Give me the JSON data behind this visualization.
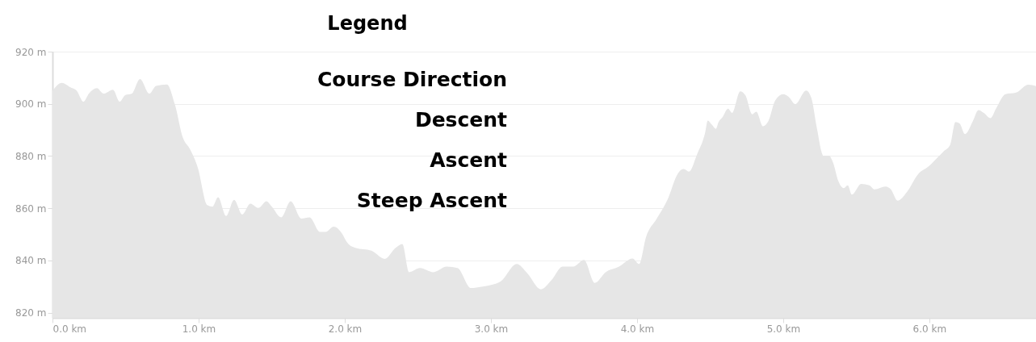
{
  "chart_data": {
    "type": "area",
    "annotations": [
      "Legend",
      "Course Direction",
      "Descent",
      "Ascent",
      "Steep Ascent"
    ],
    "x": [
      0,
      0.064,
      0.12,
      0.166,
      0.212,
      0.249,
      0.304,
      0.35,
      0.414,
      0.46,
      0.497,
      0.543,
      0.599,
      0.663,
      0.709,
      0.783,
      0.838,
      0.893,
      0.939,
      0.994,
      1.059,
      1.095,
      1.133,
      1.188,
      1.243,
      1.298,
      1.354,
      1.409,
      1.464,
      1.501,
      1.565,
      1.63,
      1.703,
      1.759,
      1.832,
      1.869,
      1.924,
      1.98,
      2.017,
      2.072,
      2.182,
      2.274,
      2.348,
      2.394,
      2.44,
      2.514,
      2.606,
      2.698,
      2.771,
      2.864,
      2.937,
      3.066,
      3.177,
      3.25,
      3.342,
      3.416,
      3.49,
      3.563,
      3.637,
      3.711,
      3.785,
      3.877,
      3.969,
      4.015,
      4.061,
      4.135,
      4.208,
      4.282,
      4.319,
      4.355,
      4.411,
      4.466,
      4.484,
      4.512,
      4.54,
      4.558,
      4.586,
      4.623,
      4.65,
      4.706,
      4.742,
      4.788,
      4.816,
      4.862,
      4.899,
      4.945,
      5.0,
      5.037,
      5.083,
      5.157,
      5.193,
      5.23,
      5.276,
      5.313,
      5.341,
      5.378,
      5.414,
      5.442,
      5.47,
      5.534,
      5.589,
      5.626,
      5.7,
      5.737,
      5.783,
      5.847,
      5.921,
      5.995,
      6.059,
      6.096,
      6.142,
      6.179,
      6.207,
      6.244,
      6.299,
      6.336,
      6.373,
      6.419,
      6.456,
      6.521,
      6.594,
      6.677,
      6.73
    ],
    "series": [
      {
        "color": "#e6e6e6",
        "values": [
          905,
          908,
          906.4,
          905,
          900.8,
          903.9,
          906,
          903.9,
          905.4,
          900.8,
          903.3,
          903.9,
          909.5,
          903.9,
          906.9,
          907.4,
          899.7,
          886.9,
          882.8,
          875.6,
          861.2,
          860.6,
          864.2,
          857,
          863.2,
          857.6,
          861.7,
          860.1,
          862.7,
          860.6,
          856.5,
          862.7,
          856,
          856.5,
          850.9,
          850.9,
          852.9,
          850.4,
          846.8,
          844.8,
          843.7,
          840.6,
          844.8,
          846.3,
          835.5,
          837.1,
          835.5,
          837.6,
          837.1,
          829.4,
          829.9,
          831.9,
          838.6,
          835,
          828.9,
          832.5,
          837.6,
          837.6,
          840.2,
          831.4,
          835.5,
          837.6,
          840.7,
          838.6,
          848.8,
          856,
          863.2,
          873.5,
          875,
          874,
          880.7,
          888.9,
          893.6,
          892,
          890.4,
          893,
          895,
          898.1,
          896.5,
          904.8,
          903.2,
          896,
          897,
          891.4,
          893.4,
          901.2,
          903.7,
          902.7,
          899.9,
          905.1,
          902.2,
          890.9,
          880.1,
          880.1,
          877.5,
          870.3,
          867.7,
          868.8,
          865.2,
          869.3,
          868.8,
          867.2,
          868.3,
          867.2,
          862.9,
          866.2,
          872.9,
          876,
          879.6,
          881.7,
          884.2,
          893,
          892.5,
          888.4,
          893.5,
          897.6,
          896.5,
          894.5,
          898.1,
          903.7,
          904.3,
          907.3,
          906.8
        ]
      }
    ],
    "xlim": [
      0,
      6.73
    ],
    "xticks": [
      {
        "value": 0,
        "label": "0.0 km"
      },
      {
        "value": 1,
        "label": "1.0 km"
      },
      {
        "value": 2,
        "label": "2.0 km"
      },
      {
        "value": 3,
        "label": "3.0 km"
      },
      {
        "value": 4,
        "label": "4.0 km"
      },
      {
        "value": 5,
        "label": "5.0 km"
      },
      {
        "value": 6,
        "label": "6.0 km"
      }
    ],
    "ylim": [
      818,
      920
    ],
    "yticks": [
      {
        "value": 820,
        "label": "820 m"
      },
      {
        "value": 840,
        "label": "840 m"
      },
      {
        "value": 860,
        "label": "860 m"
      },
      {
        "value": 880,
        "label": "880 m"
      },
      {
        "value": 900,
        "label": "900 m"
      },
      {
        "value": 920,
        "label": "920 m"
      }
    ],
    "grid": "y"
  }
}
